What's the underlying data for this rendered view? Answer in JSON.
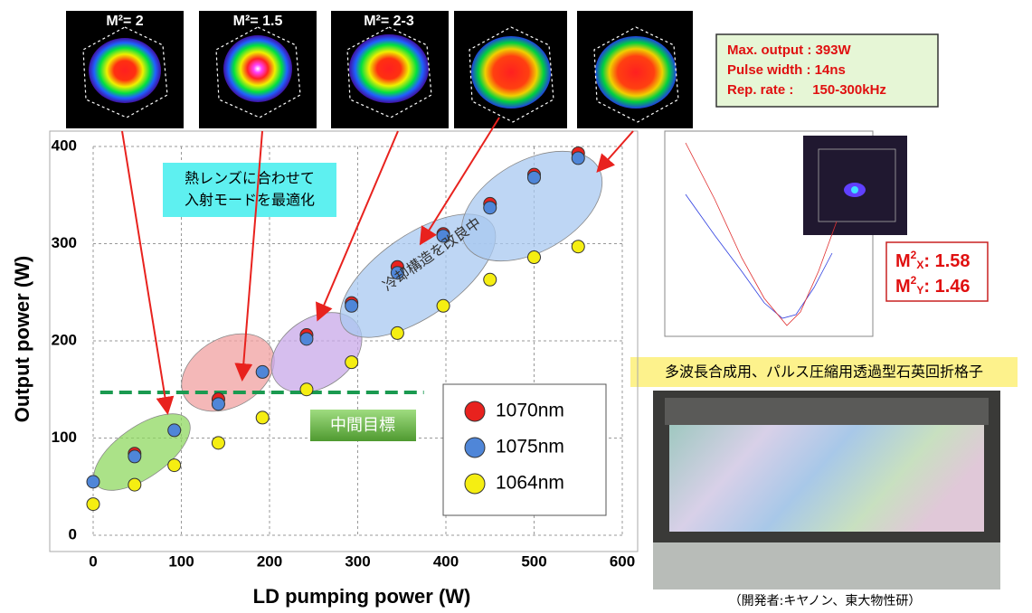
{
  "chart_data": {
    "type": "scatter",
    "xlabel": "LD pumping power  (W)",
    "ylabel": "Output power  (W)",
    "xlim": [
      0,
      600
    ],
    "ylim": [
      0,
      400
    ],
    "xticks": [
      0,
      100,
      200,
      300,
      400,
      500,
      600
    ],
    "yticks": [
      0,
      100,
      200,
      300,
      400
    ],
    "grid": true,
    "legend": "lower right",
    "series": [
      {
        "name": "1070nm",
        "color": "#e8221e",
        "x": [
          47,
          142,
          242,
          293,
          345,
          397,
          450,
          500,
          550
        ],
        "values": [
          84,
          140,
          206,
          239,
          276,
          310,
          341,
          371,
          393
        ]
      },
      {
        "name": "1075nm",
        "color": "#4f86d8",
        "x": [
          0,
          47,
          92,
          142,
          192,
          242,
          293,
          345,
          397,
          450,
          500,
          550
        ],
        "values": [
          55,
          81,
          108,
          135,
          168,
          202,
          236,
          270,
          308,
          337,
          368,
          388
        ]
      },
      {
        "name": "1064nm",
        "color": "#f5ee12",
        "x": [
          0,
          47,
          92,
          142,
          192,
          242,
          293,
          345,
          397,
          450,
          500,
          550
        ],
        "values": [
          32,
          52,
          72,
          95,
          121,
          150,
          178,
          208,
          236,
          263,
          286,
          297
        ]
      }
    ],
    "annotations": {
      "thermal_lens": [
        "熱レンズに合わせて",
        "入射モードを最適化"
      ],
      "cooling": "冷却構造を改良中"
    },
    "target": {
      "label": "中間目標",
      "value": 147,
      "x": [
        8,
        375
      ]
    }
  },
  "beam_profiles": [
    {
      "label": "M²= 2"
    },
    {
      "label": "M²= 1.5"
    },
    {
      "label": "M²= 2-3"
    }
  ],
  "specs": [
    "Max. output : 393W",
    "Pulse width : 14ns",
    "Rep. rate :     150-300kHz"
  ],
  "m2": [
    {
      "base": "M",
      "sup": "2",
      "sub": "X",
      "value": ": 1.58"
    },
    {
      "base": "M",
      "sup": "2",
      "sub": "Y",
      "value": ": 1.46"
    }
  ],
  "grating": {
    "caption": "多波長合成用、パルス圧縮用透過型石英回折格子",
    "credit": "（開発者:キヤノン、東大物性研）"
  }
}
